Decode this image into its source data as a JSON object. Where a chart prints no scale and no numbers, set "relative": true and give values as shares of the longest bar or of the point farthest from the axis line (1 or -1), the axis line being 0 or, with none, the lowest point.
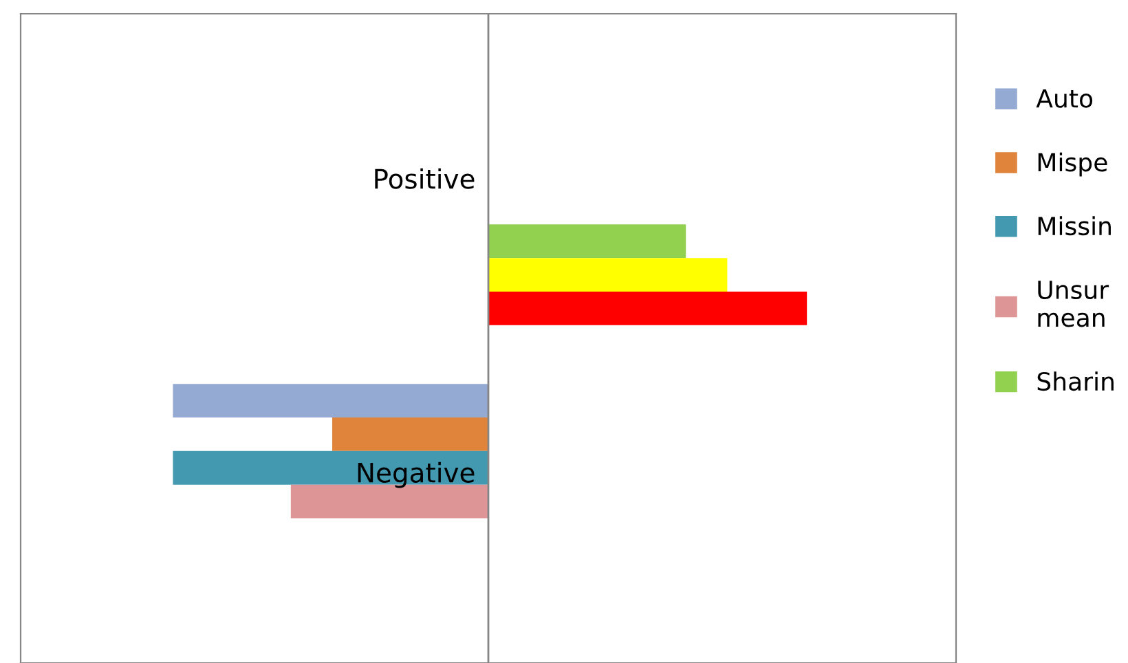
{
  "chart_data": {
    "type": "bar",
    "orientation": "horizontal",
    "relative": true,
    "categories": [
      "Positive",
      "Negative"
    ],
    "series": [
      {
        "name": "Auto",
        "color": "#95aad3",
        "values": [
          null,
          -0.99
        ]
      },
      {
        "name": "Mispe",
        "color": "#e0843c",
        "values": [
          null,
          -0.49
        ]
      },
      {
        "name": "Missin",
        "color": "#4299b0",
        "values": [
          null,
          -0.99
        ]
      },
      {
        "name": "Unsur\nmean",
        "color": "#dd9595",
        "values": [
          null,
          -0.62
        ]
      },
      {
        "name": "Sharin",
        "color": "#92d050",
        "values": [
          0.62,
          null
        ]
      },
      {
        "color": "#ffff00",
        "values": [
          0.75,
          null
        ]
      },
      {
        "color": "#ff0000",
        "values": [
          1,
          null
        ]
      }
    ],
    "legend": "right"
  }
}
